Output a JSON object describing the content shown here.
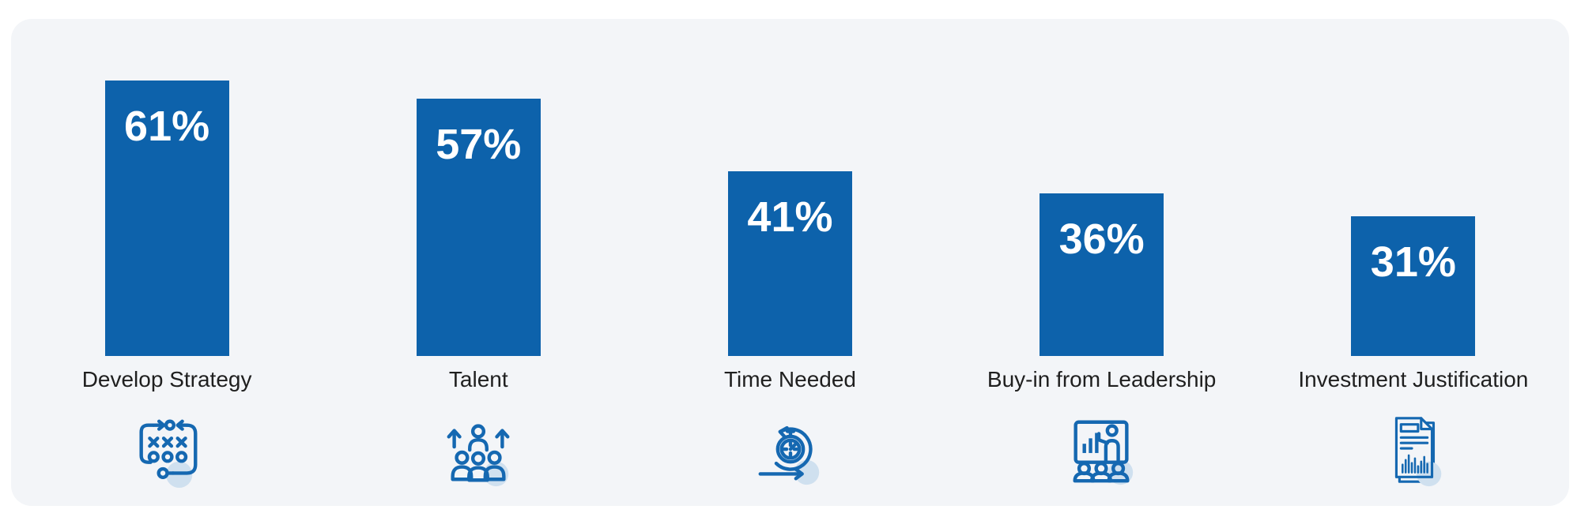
{
  "chart_data": {
    "type": "bar",
    "title": "",
    "categories": [
      "Develop Strategy",
      "Talent",
      "Time Needed",
      "Buy-in from Leadership",
      "Investment Justification"
    ],
    "values": [
      61,
      57,
      41,
      36,
      31
    ],
    "value_labels": [
      "61%",
      "57%",
      "41%",
      "36%",
      "31%"
    ],
    "unit": "%",
    "ylim": [
      0,
      75
    ],
    "grid": "off",
    "legend": "none",
    "orientation": "vertical",
    "icons": [
      {
        "name": "strategy-play-icon",
        "meaning": "tactics play board with arrows, X and O markers"
      },
      {
        "name": "talent-growth-icon",
        "meaning": "group of people with upward arrows"
      },
      {
        "name": "time-sprint-icon",
        "meaning": "stopwatch inside circular sprint arrow"
      },
      {
        "name": "leadership-presentation-icon",
        "meaning": "presenter at chart board with audience"
      },
      {
        "name": "investment-report-icon",
        "meaning": "report document with text lines and bar chart"
      }
    ],
    "colors": {
      "bar": "#0d62ab",
      "value_label": "#ffffff",
      "category_label": "#1f1f1f",
      "icon_stroke": "#1568b1",
      "icon_accent": "#cfe0ef",
      "card_background": "#f3f5f8",
      "page_background": "#ffffff"
    }
  }
}
